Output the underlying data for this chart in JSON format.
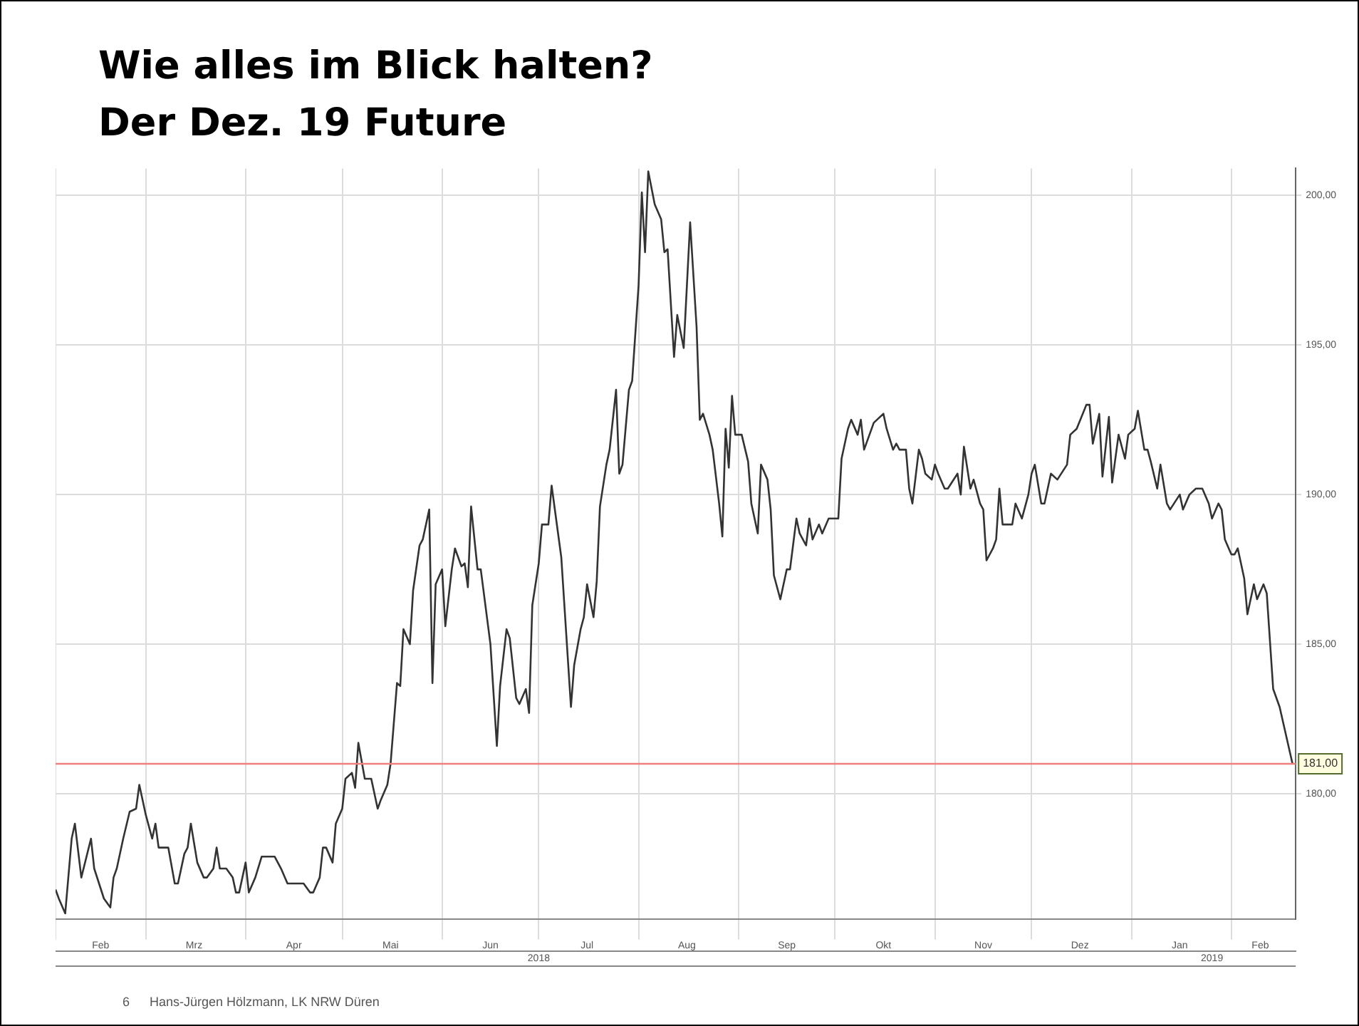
{
  "chart_data": {
    "type": "line",
    "title": "Wie alles im Blick halten?",
    "subtitle": "Der Dez. 19 Future",
    "x": [
      "2018-02-01",
      "2018-02-02",
      "2018-02-04",
      "2018-02-06",
      "2018-02-07",
      "2018-02-09",
      "2018-02-12",
      "2018-02-13",
      "2018-02-16",
      "2018-02-18",
      "2018-02-19",
      "2018-02-20",
      "2018-02-22",
      "2018-02-24",
      "2018-02-26",
      "2018-02-27",
      "2018-03-01",
      "2018-03-03",
      "2018-03-04",
      "2018-03-05",
      "2018-03-08",
      "2018-03-10",
      "2018-03-11",
      "2018-03-13",
      "2018-03-14",
      "2018-03-15",
      "2018-03-17",
      "2018-03-19",
      "2018-03-20",
      "2018-03-22",
      "2018-03-23",
      "2018-03-24",
      "2018-03-26",
      "2018-03-28",
      "2018-03-29",
      "2018-03-30",
      "2018-04-01",
      "2018-04-02",
      "2018-04-04",
      "2018-04-06",
      "2018-04-10",
      "2018-04-12",
      "2018-04-14",
      "2018-04-19",
      "2018-04-21",
      "2018-04-22",
      "2018-04-24",
      "2018-04-25",
      "2018-04-26",
      "2018-04-28",
      "2018-04-29",
      "2018-05-01",
      "2018-05-02",
      "2018-05-04",
      "2018-05-05",
      "2018-05-06",
      "2018-05-08",
      "2018-05-10",
      "2018-05-12",
      "2018-05-13",
      "2018-05-15",
      "2018-05-16",
      "2018-05-18",
      "2018-05-19",
      "2018-05-20",
      "2018-05-22",
      "2018-05-23",
      "2018-05-25",
      "2018-05-26",
      "2018-05-28",
      "2018-05-29",
      "2018-05-30",
      "2018-06-01",
      "2018-06-02",
      "2018-06-04",
      "2018-06-05",
      "2018-06-07",
      "2018-06-08",
      "2018-06-09",
      "2018-06-10",
      "2018-06-12",
      "2018-06-13",
      "2018-06-16",
      "2018-06-18",
      "2018-06-19",
      "2018-06-21",
      "2018-06-22",
      "2018-06-24",
      "2018-06-25",
      "2018-06-27",
      "2018-06-28",
      "2018-06-29",
      "2018-07-01",
      "2018-07-02",
      "2018-07-04",
      "2018-07-05",
      "2018-07-07",
      "2018-07-08",
      "2018-07-11",
      "2018-07-12",
      "2018-07-14",
      "2018-07-15",
      "2018-07-16",
      "2018-07-18",
      "2018-07-19",
      "2018-07-20",
      "2018-07-22",
      "2018-07-23",
      "2018-07-25",
      "2018-07-26",
      "2018-07-27",
      "2018-07-29",
      "2018-07-30",
      "2018-08-01",
      "2018-08-02",
      "2018-08-03",
      "2018-08-04",
      "2018-08-06",
      "2018-08-08",
      "2018-08-09",
      "2018-08-10",
      "2018-08-12",
      "2018-08-13",
      "2018-08-15",
      "2018-08-17",
      "2018-08-19",
      "2018-08-20",
      "2018-08-21",
      "2018-08-23",
      "2018-08-24",
      "2018-08-26",
      "2018-08-27",
      "2018-08-28",
      "2018-08-29",
      "2018-08-30",
      "2018-08-31",
      "2018-09-02",
      "2018-09-04",
      "2018-09-05",
      "2018-09-07",
      "2018-09-08",
      "2018-09-10",
      "2018-09-11",
      "2018-09-12",
      "2018-09-14",
      "2018-09-16",
      "2018-09-17",
      "2018-09-19",
      "2018-09-20",
      "2018-09-22",
      "2018-09-23",
      "2018-09-24",
      "2018-09-26",
      "2018-09-27",
      "2018-09-29",
      "2018-10-02",
      "2018-10-03",
      "2018-10-05",
      "2018-10-06",
      "2018-10-08",
      "2018-10-09",
      "2018-10-10",
      "2018-10-13",
      "2018-10-14",
      "2018-10-16",
      "2018-10-17",
      "2018-10-19",
      "2018-10-20",
      "2018-10-21",
      "2018-10-23",
      "2018-10-24",
      "2018-10-25",
      "2018-10-27",
      "2018-10-28",
      "2018-10-29",
      "2018-10-31",
      "2018-11-01",
      "2018-11-02",
      "2018-11-04",
      "2018-11-05",
      "2018-11-08",
      "2018-11-09",
      "2018-11-10",
      "2018-11-12",
      "2018-11-13",
      "2018-11-15",
      "2018-11-16",
      "2018-11-17",
      "2018-11-19",
      "2018-11-20",
      "2018-11-21",
      "2018-11-22",
      "2018-11-25",
      "2018-11-26",
      "2018-11-28",
      "2018-11-30",
      "2018-12-01",
      "2018-12-02",
      "2018-12-04",
      "2018-12-05",
      "2018-12-07",
      "2018-12-09",
      "2018-12-12",
      "2018-12-13",
      "2018-12-15",
      "2018-12-18",
      "2018-12-19",
      "2018-12-20",
      "2018-12-22",
      "2018-12-23",
      "2018-12-25",
      "2018-12-26",
      "2018-12-28",
      "2018-12-30",
      "2018-12-31",
      "2019-01-02",
      "2019-01-03",
      "2019-01-05",
      "2019-01-06",
      "2019-01-07",
      "2019-01-09",
      "2019-01-10",
      "2019-01-12",
      "2019-01-13",
      "2019-01-16",
      "2019-01-17",
      "2019-01-19",
      "2019-01-21",
      "2019-01-23",
      "2019-01-25",
      "2019-01-26",
      "2019-01-28",
      "2019-01-29",
      "2019-01-30",
      "2019-02-01",
      "2019-02-02",
      "2019-02-03",
      "2019-02-05",
      "2019-02-06",
      "2019-02-08",
      "2019-02-09",
      "2019-02-11",
      "2019-02-12",
      "2019-02-14",
      "2019-02-16",
      "2019-02-20"
    ],
    "series": [
      {
        "color": "#333333",
        "values": [
          176.8,
          176.5,
          176.0,
          178.5,
          179.0,
          177.2,
          178.5,
          177.5,
          176.5,
          176.2,
          177.2,
          177.5,
          178.5,
          179.4,
          179.5,
          180.3,
          179.3,
          178.5,
          179.0,
          178.2,
          178.2,
          177.0,
          177.0,
          178.0,
          178.2,
          179.0,
          177.7,
          177.2,
          177.2,
          177.5,
          178.2,
          177.5,
          177.5,
          177.2,
          176.7,
          176.7,
          177.7,
          176.7,
          177.2,
          177.9,
          177.9,
          177.5,
          177.0,
          177.0,
          176.7,
          176.7,
          177.2,
          178.2,
          178.2,
          177.7,
          179.0,
          179.5,
          180.5,
          180.7,
          180.2,
          181.7,
          180.5,
          180.5,
          179.5,
          179.8,
          180.3,
          181.0,
          183.7,
          183.6,
          185.5,
          185.0,
          186.8,
          188.3,
          188.5,
          189.5,
          183.7,
          187.0,
          187.5,
          185.6,
          187.5,
          188.2,
          187.6,
          187.7,
          186.9,
          189.6,
          187.5,
          187.5,
          185.0,
          181.6,
          183.6,
          185.5,
          185.2,
          183.2,
          183.0,
          183.5,
          182.7,
          186.3,
          187.7,
          189.0,
          189.0,
          190.3,
          188.7,
          187.9,
          182.9,
          184.3,
          185.5,
          185.9,
          187.0,
          185.9,
          187.1,
          189.6,
          191.0,
          191.5,
          193.5,
          190.7,
          191.0,
          193.5,
          193.8,
          197.0,
          200.1,
          198.1,
          200.8,
          199.7,
          199.2,
          198.1,
          198.2,
          194.6,
          196.0,
          194.9,
          199.1,
          195.6,
          192.5,
          192.7,
          192.0,
          191.5,
          189.7,
          188.6,
          192.2,
          190.9,
          193.3,
          192.0,
          192.0,
          191.1,
          189.7,
          188.7,
          191.0,
          190.5,
          189.5,
          187.3,
          186.5,
          187.5,
          187.5,
          189.2,
          188.7,
          188.3,
          189.2,
          188.5,
          189.0,
          188.7,
          189.2,
          189.2,
          191.2,
          192.2,
          192.5,
          192.0,
          192.5,
          191.5,
          192.4,
          192.5,
          192.7,
          192.2,
          191.5,
          191.7,
          191.5,
          191.5,
          190.2,
          189.7,
          191.5,
          191.2,
          190.7,
          190.5,
          191.0,
          190.7,
          190.2,
          190.2,
          190.7,
          190.0,
          191.6,
          190.2,
          190.5,
          189.7,
          189.5,
          187.8,
          188.2,
          188.5,
          190.2,
          189.0,
          189.0,
          189.7,
          189.2,
          190.0,
          190.7,
          191.0,
          189.7,
          189.7,
          190.7,
          190.5,
          191.0,
          192.0,
          192.2,
          193.0,
          193.0,
          191.7,
          192.7,
          190.6,
          192.6,
          190.4,
          192.0,
          191.2,
          192.0,
          192.2,
          192.8,
          191.5,
          191.5,
          191.1,
          190.2,
          191.0,
          189.7,
          189.5,
          190.0,
          189.5,
          190.0,
          190.2,
          190.2,
          189.7,
          189.2,
          189.7,
          189.5,
          188.5,
          188.0,
          188.0,
          188.2,
          187.2,
          186.0,
          187.0,
          186.5,
          187.0,
          186.7,
          183.5,
          182.9,
          181.0
        ]
      }
    ],
    "xlim": [
      "2018-02-01",
      "2019-02-21"
    ],
    "xticks": [
      {
        "value": "2018-02-01",
        "label": null
      },
      {
        "value": "2018-02-15",
        "label": "Feb"
      },
      {
        "value": "2018-03-01",
        "label": null
      },
      {
        "value": "2018-03-16",
        "label": "Mrz"
      },
      {
        "value": "2018-04-01",
        "label": null
      },
      {
        "value": "2018-04-16",
        "label": "Apr"
      },
      {
        "value": "2018-05-01",
        "label": null
      },
      {
        "value": "2018-05-16",
        "label": "Mai"
      },
      {
        "value": "2018-06-01",
        "label": null
      },
      {
        "value": "2018-06-16",
        "label": "Jun"
      },
      {
        "value": "2018-07-01",
        "label": null
      },
      {
        "value": "2018-07-16",
        "label": "Jul"
      },
      {
        "value": "2018-08-01",
        "label": null
      },
      {
        "value": "2018-08-16",
        "label": "Aug"
      },
      {
        "value": "2018-09-01",
        "label": null
      },
      {
        "value": "2018-09-16",
        "label": "Sep"
      },
      {
        "value": "2018-10-01",
        "label": null
      },
      {
        "value": "2018-10-16",
        "label": "Okt"
      },
      {
        "value": "2018-11-01",
        "label": null
      },
      {
        "value": "2018-11-16",
        "label": "Nov"
      },
      {
        "value": "2018-12-01",
        "label": null
      },
      {
        "value": "2018-12-16",
        "label": "Dez"
      },
      {
        "value": "2019-01-01",
        "label": null
      },
      {
        "value": "2019-01-16",
        "label": "Jan"
      },
      {
        "value": "2019-02-01",
        "label": null
      },
      {
        "value": "2019-02-10",
        "label": "Feb"
      }
    ],
    "x2lim": [
      "2018-02-01",
      "2019-02-21"
    ],
    "x2ticks": [
      {
        "value": "2018-07-01",
        "label": "2018"
      },
      {
        "value": "2019-01-26",
        "label": "2019"
      }
    ],
    "ylim": [
      175.8,
      200.9
    ],
    "yticks": [
      {
        "value": 180,
        "label": "180,00"
      },
      {
        "value": 185,
        "label": "185,00"
      },
      {
        "value": 190,
        "label": "190,00"
      },
      {
        "value": 195,
        "label": "195,00"
      },
      {
        "value": 200,
        "label": "200,00"
      }
    ],
    "ref_lines": [
      {
        "axis": "y",
        "value": 181,
        "label": "181,00",
        "color": "#f08080"
      }
    ],
    "annotations": [
      "6",
      "Hans-Jürgen Hölzmann, LK NRW Düren"
    ],
    "grid": true,
    "legend": false,
    "marker": "none",
    "line_style": "solid"
  }
}
